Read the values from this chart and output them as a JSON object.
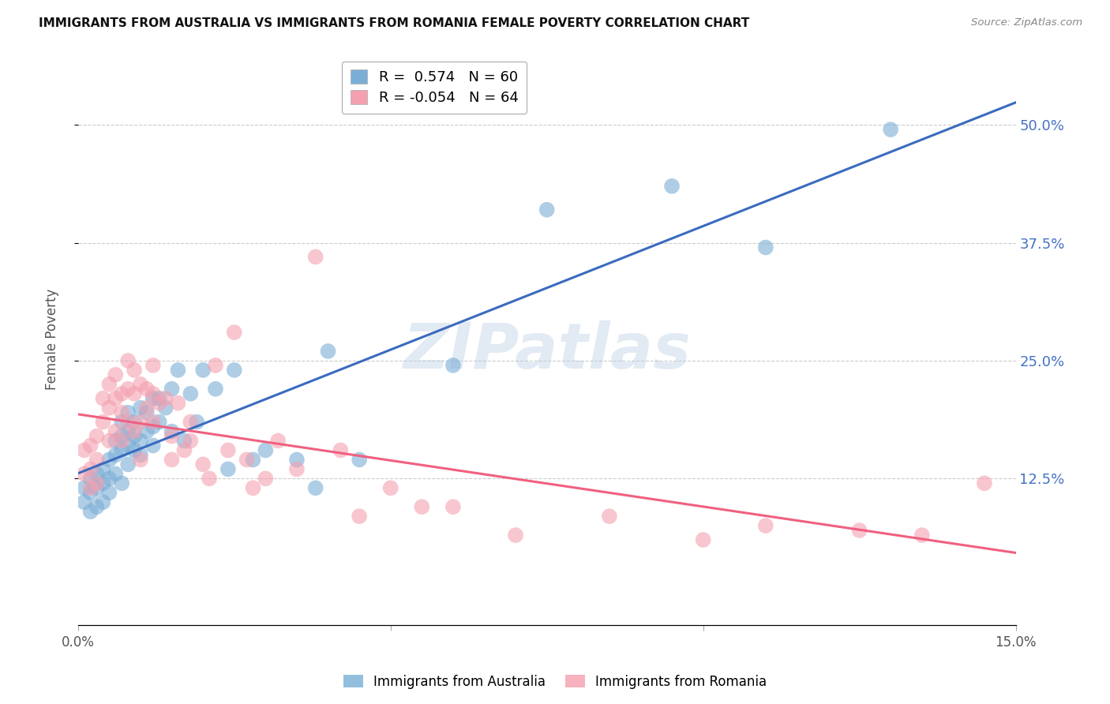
{
  "title": "IMMIGRANTS FROM AUSTRALIA VS IMMIGRANTS FROM ROMANIA FEMALE POVERTY CORRELATION CHART",
  "source": "Source: ZipAtlas.com",
  "ylabel": "Female Poverty",
  "xlim": [
    0.0,
    0.15
  ],
  "ylim": [
    -0.03,
    0.575
  ],
  "yticks": [
    0.125,
    0.25,
    0.375,
    0.5
  ],
  "ytick_labels": [
    "12.5%",
    "25.0%",
    "37.5%",
    "50.0%"
  ],
  "xticks": [
    0.0,
    0.05,
    0.1,
    0.15
  ],
  "xtick_labels": [
    "0.0%",
    "",
    "",
    "15.0%"
  ],
  "legend_R_australia": "R =  0.574   N = 60",
  "legend_R_romania": "R = -0.054   N = 64",
  "australia_color": "#7aaed6",
  "romania_color": "#f4a0b0",
  "australia_line_color": "#3a6bbf",
  "romania_line_color": "#f06080",
  "tick_color": "#4472c4",
  "watermark_text": "ZIPatlas",
  "australia_x": [
    0.001,
    0.001,
    0.002,
    0.002,
    0.002,
    0.003,
    0.003,
    0.003,
    0.004,
    0.004,
    0.004,
    0.005,
    0.005,
    0.005,
    0.006,
    0.006,
    0.006,
    0.007,
    0.007,
    0.007,
    0.007,
    0.008,
    0.008,
    0.008,
    0.008,
    0.009,
    0.009,
    0.009,
    0.01,
    0.01,
    0.01,
    0.011,
    0.011,
    0.012,
    0.012,
    0.012,
    0.013,
    0.013,
    0.014,
    0.015,
    0.015,
    0.016,
    0.017,
    0.018,
    0.019,
    0.02,
    0.022,
    0.024,
    0.025,
    0.028,
    0.03,
    0.035,
    0.038,
    0.04,
    0.045,
    0.06,
    0.075,
    0.095,
    0.11,
    0.13
  ],
  "australia_y": [
    0.1,
    0.115,
    0.09,
    0.11,
    0.125,
    0.095,
    0.115,
    0.13,
    0.1,
    0.12,
    0.135,
    0.11,
    0.125,
    0.145,
    0.13,
    0.15,
    0.165,
    0.12,
    0.155,
    0.17,
    0.185,
    0.14,
    0.16,
    0.175,
    0.195,
    0.155,
    0.17,
    0.185,
    0.15,
    0.165,
    0.2,
    0.175,
    0.195,
    0.16,
    0.18,
    0.21,
    0.185,
    0.21,
    0.2,
    0.175,
    0.22,
    0.24,
    0.165,
    0.215,
    0.185,
    0.24,
    0.22,
    0.135,
    0.24,
    0.145,
    0.155,
    0.145,
    0.115,
    0.26,
    0.145,
    0.245,
    0.41,
    0.435,
    0.37,
    0.495
  ],
  "romania_x": [
    0.001,
    0.001,
    0.002,
    0.002,
    0.002,
    0.003,
    0.003,
    0.003,
    0.004,
    0.004,
    0.005,
    0.005,
    0.005,
    0.006,
    0.006,
    0.006,
    0.007,
    0.007,
    0.007,
    0.008,
    0.008,
    0.008,
    0.009,
    0.009,
    0.009,
    0.01,
    0.01,
    0.01,
    0.011,
    0.011,
    0.012,
    0.012,
    0.012,
    0.013,
    0.014,
    0.015,
    0.015,
    0.016,
    0.017,
    0.018,
    0.018,
    0.02,
    0.021,
    0.022,
    0.024,
    0.025,
    0.027,
    0.028,
    0.03,
    0.032,
    0.035,
    0.038,
    0.042,
    0.045,
    0.05,
    0.055,
    0.06,
    0.07,
    0.085,
    0.1,
    0.11,
    0.125,
    0.135,
    0.145
  ],
  "romania_y": [
    0.13,
    0.155,
    0.115,
    0.135,
    0.16,
    0.12,
    0.145,
    0.17,
    0.185,
    0.21,
    0.165,
    0.2,
    0.225,
    0.175,
    0.21,
    0.235,
    0.165,
    0.195,
    0.215,
    0.185,
    0.22,
    0.25,
    0.175,
    0.215,
    0.24,
    0.185,
    0.225,
    0.145,
    0.2,
    0.22,
    0.185,
    0.215,
    0.245,
    0.205,
    0.21,
    0.145,
    0.17,
    0.205,
    0.155,
    0.165,
    0.185,
    0.14,
    0.125,
    0.245,
    0.155,
    0.28,
    0.145,
    0.115,
    0.125,
    0.165,
    0.135,
    0.36,
    0.155,
    0.085,
    0.115,
    0.095,
    0.095,
    0.065,
    0.085,
    0.06,
    0.075,
    0.07,
    0.065,
    0.12
  ]
}
